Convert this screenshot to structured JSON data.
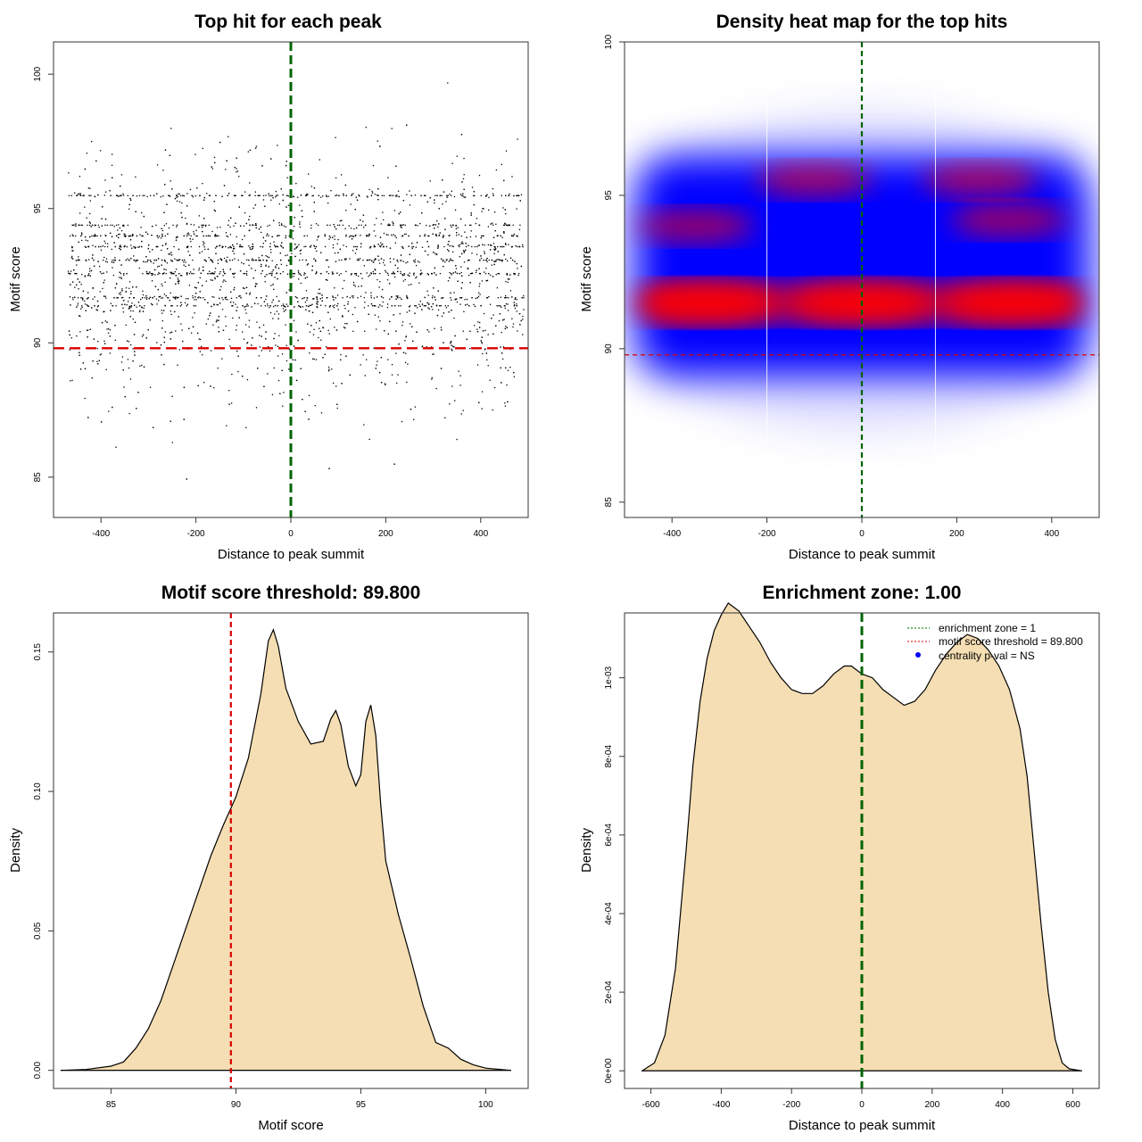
{
  "chart_data": [
    {
      "type": "scatter",
      "title": "Top hit for each peak",
      "xlabel": "Distance to peak summit",
      "ylabel": "Motif score",
      "xlim": [
        -500,
        500
      ],
      "ylim": [
        83.5,
        101.2
      ],
      "xticks": [
        -400,
        -200,
        0,
        200,
        400
      ],
      "yticks": [
        85,
        90,
        95,
        100
      ],
      "hlines": [
        {
          "y": 89.8,
          "color": "#dd0000",
          "style": "dashed",
          "meaning": "motif score threshold"
        }
      ],
      "vlines": [
        {
          "x": 0,
          "color": "#006400",
          "style": "dashed"
        }
      ],
      "points_note": "about 4000 points uniformly spread over x in [-470, 490]; score density concentrated between 88 and 96 with dense rows near 91.5, 94 and 95.5; sparse above 97 and below 87",
      "grid": false
    },
    {
      "type": "heatmap",
      "title": "Density heat map for the top hits",
      "xlabel": "Distance to peak summit",
      "ylabel": "Motif score",
      "xlim": [
        -500,
        500
      ],
      "ylim": [
        84.5,
        100
      ],
      "xticks": [
        -400,
        -200,
        0,
        200,
        400
      ],
      "yticks": [
        85,
        90,
        95,
        100
      ],
      "colorscale": [
        "#ffffff",
        "#0000ff",
        "#ff0000"
      ],
      "hotspots": [
        {
          "x": -330,
          "y": 91.5,
          "level": "high"
        },
        {
          "x": 0,
          "y": 91.5,
          "level": "high"
        },
        {
          "x": 320,
          "y": 91.5,
          "level": "high"
        },
        {
          "x": -350,
          "y": 94,
          "level": "medium"
        },
        {
          "x": 310,
          "y": 94.2,
          "level": "medium"
        },
        {
          "x": -100,
          "y": 95.5,
          "level": "medium"
        },
        {
          "x": 250,
          "y": 95.5,
          "level": "medium"
        }
      ],
      "hlines": [
        {
          "y": 89.8,
          "color": "#dd0000",
          "style": "dashed"
        }
      ],
      "vlines": [
        {
          "x": 0,
          "color": "#006400",
          "style": "dashed"
        },
        {
          "x": -200,
          "color": "#ffffff",
          "style": "solid"
        },
        {
          "x": 155,
          "color": "#ffffff",
          "style": "solid"
        }
      ]
    },
    {
      "type": "area",
      "title": "Motif score threshold: 89.800",
      "xlabel": "Motif score",
      "ylabel": "Density",
      "xlim": [
        82.7,
        101.7
      ],
      "ylim": [
        -0.0065,
        0.164
      ],
      "xticks": [
        85,
        90,
        95,
        100
      ],
      "yticks": [
        0.0,
        0.05,
        0.1,
        0.15
      ],
      "ytick_labels": [
        "0.00",
        "0.05",
        "0.10",
        "0.15"
      ],
      "fill": "#f5deb3",
      "vlines": [
        {
          "x": 89.8,
          "color": "#dd0000",
          "style": "dashed"
        }
      ],
      "x": [
        83.0,
        84.0,
        85.0,
        85.5,
        86.0,
        86.5,
        87.0,
        87.5,
        88.0,
        88.5,
        89.0,
        89.5,
        90.0,
        90.5,
        91.0,
        91.3,
        91.5,
        91.7,
        92.0,
        92.5,
        93.0,
        93.5,
        93.8,
        94.0,
        94.2,
        94.5,
        94.8,
        95.0,
        95.2,
        95.4,
        95.6,
        95.8,
        96.0,
        96.5,
        97.0,
        97.5,
        98.0,
        98.5,
        99.0,
        99.5,
        100.0,
        101.0
      ],
      "y": [
        0.0,
        0.0003,
        0.0015,
        0.003,
        0.008,
        0.015,
        0.025,
        0.038,
        0.051,
        0.064,
        0.077,
        0.088,
        0.098,
        0.112,
        0.135,
        0.154,
        0.158,
        0.152,
        0.137,
        0.125,
        0.117,
        0.118,
        0.126,
        0.129,
        0.124,
        0.109,
        0.102,
        0.106,
        0.125,
        0.131,
        0.12,
        0.095,
        0.075,
        0.056,
        0.04,
        0.023,
        0.01,
        0.008,
        0.004,
        0.002,
        0.0008,
        0.0
      ]
    },
    {
      "type": "area",
      "title": "Enrichment zone: 1.00",
      "xlabel": "Distance to peak summit",
      "ylabel": "Density",
      "xlim": [
        -675,
        675
      ],
      "ylim": [
        -4.5e-05,
        0.001165
      ],
      "xticks": [
        -600,
        -400,
        -200,
        0,
        200,
        400,
        600
      ],
      "yticks": [
        0,
        0.0002,
        0.0004,
        0.0006,
        0.0008,
        0.001
      ],
      "ytick_labels": [
        "0e+00",
        "2e-04",
        "4e-04",
        "6e-04",
        "8e-04",
        "1e-03"
      ],
      "fill": "#f5deb3",
      "vlines": [
        {
          "x": 0,
          "color": "#006400",
          "style": "dashed"
        }
      ],
      "x": [
        -625,
        -590,
        -560,
        -530,
        -500,
        -480,
        -460,
        -440,
        -420,
        -400,
        -380,
        -350,
        -320,
        -290,
        -260,
        -230,
        -200,
        -170,
        -140,
        -110,
        -80,
        -50,
        -30,
        0,
        30,
        60,
        90,
        120,
        150,
        180,
        210,
        240,
        270,
        300,
        330,
        360,
        390,
        420,
        450,
        470,
        490,
        510,
        530,
        550,
        570,
        590,
        625
      ],
      "y": [
        0.0,
        2e-05,
        9e-05,
        0.00026,
        0.00056,
        0.00078,
        0.00094,
        0.00105,
        0.00112,
        0.00116,
        0.00119,
        0.00117,
        0.00113,
        0.00109,
        0.00104,
        0.001,
        0.00097,
        0.00096,
        0.00096,
        0.00098,
        0.00101,
        0.00103,
        0.00103,
        0.00101,
        0.001,
        0.00097,
        0.00095,
        0.00093,
        0.00094,
        0.00097,
        0.00102,
        0.00106,
        0.00109,
        0.00111,
        0.0011,
        0.00107,
        0.00103,
        0.00097,
        0.00087,
        0.00075,
        0.00056,
        0.00037,
        0.0002,
        8e-05,
        2e-05,
        5e-06,
        0.0
      ]
    }
  ],
  "legend": {
    "items": [
      {
        "label": "enrichment zone = 1",
        "color": "#228b22",
        "kind": "dotted-line"
      },
      {
        "label": "motif score threshold = 89.800",
        "color": "#dd3333",
        "kind": "dotted-line"
      },
      {
        "label": "centrality p-val = NS",
        "color": "#0000ff",
        "kind": "point"
      }
    ],
    "position": "top-right"
  }
}
